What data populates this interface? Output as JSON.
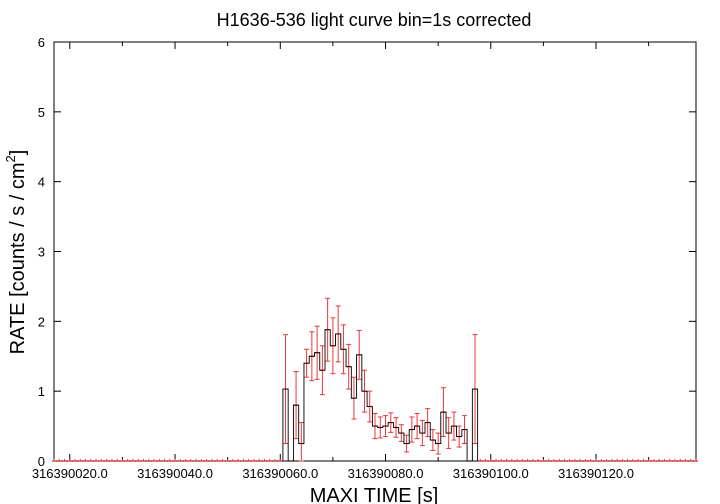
{
  "chart_data": {
    "type": "scatter",
    "title": "H1636-536 light curve bin=1s corrected",
    "xlabel": "MAXI TIME [s]",
    "ylabel_main": "RATE [counts / s / cm",
    "ylabel_sup": "2",
    "ylabel_end": "]",
    "xlim": [
      316390017,
      316390139
    ],
    "ylim": [
      0,
      6
    ],
    "x_ticks": [
      316390020,
      316390040,
      316390060,
      316390080,
      316390100,
      316390120
    ],
    "x_tick_labels": [
      "316390020.0",
      "316390040.0",
      "316390060.0",
      "316390080.0",
      "316390100.0",
      "316390120.0"
    ],
    "y_ticks": [
      0,
      1,
      2,
      3,
      4,
      5,
      6
    ],
    "y_tick_labels": [
      "0",
      "1",
      "2",
      "3",
      "4",
      "5",
      "6"
    ],
    "series_color": "#e8383d",
    "zero_start": 316390017,
    "zero_end": 316390139,
    "bins": [
      {
        "x": 316390061,
        "y": 1.03,
        "err": 0.78
      },
      {
        "x": 316390062,
        "y": 0.0,
        "err": 0.0
      },
      {
        "x": 316390063,
        "y": 0.8,
        "err": 0.48
      },
      {
        "x": 316390064,
        "y": 0.25,
        "err": 0.3
      },
      {
        "x": 316390065,
        "y": 1.4,
        "err": 0.2
      },
      {
        "x": 316390066,
        "y": 1.5,
        "err": 0.35
      },
      {
        "x": 316390067,
        "y": 1.55,
        "err": 0.38
      },
      {
        "x": 316390068,
        "y": 1.3,
        "err": 0.35
      },
      {
        "x": 316390069,
        "y": 1.88,
        "err": 0.45
      },
      {
        "x": 316390070,
        "y": 1.65,
        "err": 0.4
      },
      {
        "x": 316390071,
        "y": 1.82,
        "err": 0.4
      },
      {
        "x": 316390072,
        "y": 1.6,
        "err": 0.35
      },
      {
        "x": 316390073,
        "y": 1.35,
        "err": 0.32
      },
      {
        "x": 316390074,
        "y": 0.9,
        "err": 0.3
      },
      {
        "x": 316390075,
        "y": 1.52,
        "err": 0.35
      },
      {
        "x": 316390076,
        "y": 1.0,
        "err": 0.3
      },
      {
        "x": 316390077,
        "y": 0.78,
        "err": 0.22
      },
      {
        "x": 316390078,
        "y": 0.5,
        "err": 0.18
      },
      {
        "x": 316390079,
        "y": 0.48,
        "err": 0.15
      },
      {
        "x": 316390080,
        "y": 0.5,
        "err": 0.15
      },
      {
        "x": 316390081,
        "y": 0.55,
        "err": 0.14
      },
      {
        "x": 316390082,
        "y": 0.48,
        "err": 0.14
      },
      {
        "x": 316390083,
        "y": 0.4,
        "err": 0.12
      },
      {
        "x": 316390084,
        "y": 0.25,
        "err": 0.12
      },
      {
        "x": 316390085,
        "y": 0.45,
        "err": 0.18
      },
      {
        "x": 316390086,
        "y": 0.5,
        "err": 0.18
      },
      {
        "x": 316390087,
        "y": 0.4,
        "err": 0.18
      },
      {
        "x": 316390088,
        "y": 0.55,
        "err": 0.2
      },
      {
        "x": 316390089,
        "y": 0.3,
        "err": 0.15
      },
      {
        "x": 316390090,
        "y": 0.25,
        "err": 0.15
      },
      {
        "x": 316390091,
        "y": 0.7,
        "err": 0.35
      },
      {
        "x": 316390092,
        "y": 0.4,
        "err": 0.22
      },
      {
        "x": 316390093,
        "y": 0.5,
        "err": 0.2
      },
      {
        "x": 316390094,
        "y": 0.35,
        "err": 0.15
      },
      {
        "x": 316390095,
        "y": 0.45,
        "err": 0.2
      },
      {
        "x": 316390096,
        "y": 0.0,
        "err": 0.0
      },
      {
        "x": 316390097,
        "y": 1.03,
        "err": 0.78
      }
    ]
  }
}
